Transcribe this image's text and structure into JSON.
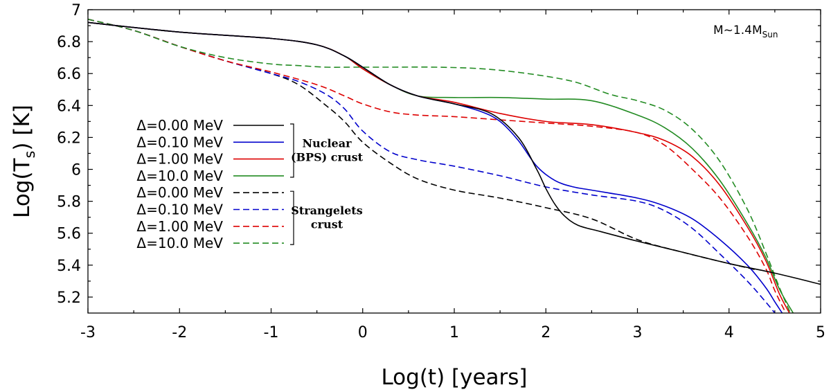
{
  "chart_data": {
    "type": "line",
    "title": "",
    "xlabel": "Log(t) [years]",
    "ylabel": {
      "main": "Log(T",
      "sub": "s",
      "tail": ") [K]"
    },
    "xlim": [
      -3,
      5
    ],
    "ylim": [
      5.1,
      7.0
    ],
    "xticks": [
      -3,
      -2,
      -1,
      0,
      1,
      2,
      3,
      4,
      5
    ],
    "yticks": [
      5.2,
      5.4,
      5.6,
      5.8,
      6,
      6.2,
      6.4,
      6.6,
      6.8,
      7
    ],
    "ytick_labels": [
      "5.2",
      "5.4",
      "5.6",
      "5.8",
      "6",
      "6.2",
      "6.4",
      "6.6",
      "6.8",
      "7"
    ],
    "grid": false,
    "legend_position": "left",
    "annotation": {
      "main": "M~1.4M",
      "sub": "Sun"
    },
    "groups": [
      {
        "label_lines": [
          "Nuclear",
          "(BPS) crust"
        ]
      },
      {
        "label_lines": [
          "Strangelets",
          "crust"
        ]
      }
    ],
    "series": [
      {
        "name": "Δ=0.00 MeV",
        "group": 0,
        "color": "#000000",
        "dash": "solid",
        "x": [
          -3,
          -2,
          -1,
          -0.5,
          -0.2,
          0,
          0.3,
          0.6,
          1,
          1.4,
          1.7,
          1.9,
          2.0,
          2.1,
          2.2,
          2.35,
          2.6,
          3,
          3.5,
          4,
          4.5,
          5
        ],
        "y": [
          6.92,
          6.86,
          6.82,
          6.78,
          6.71,
          6.64,
          6.53,
          6.46,
          6.41,
          6.35,
          6.2,
          6.0,
          5.88,
          5.78,
          5.71,
          5.65,
          5.61,
          5.55,
          5.48,
          5.41,
          5.35,
          5.28
        ]
      },
      {
        "name": "Δ=0.10 MeV",
        "group": 0,
        "color": "#0000cc",
        "dash": "solid",
        "x": [
          -3,
          -2,
          -1,
          -0.5,
          -0.2,
          0,
          0.3,
          0.6,
          1,
          1.3,
          1.5,
          1.7,
          1.9,
          2.1,
          2.3,
          2.5,
          3,
          3.3,
          3.6,
          3.9,
          4.2,
          4.4,
          4.5,
          4.58
        ],
        "y": [
          6.92,
          6.86,
          6.82,
          6.78,
          6.71,
          6.64,
          6.53,
          6.46,
          6.41,
          6.36,
          6.3,
          6.18,
          6.02,
          5.93,
          5.89,
          5.87,
          5.82,
          5.77,
          5.69,
          5.56,
          5.4,
          5.26,
          5.17,
          5.1
        ]
      },
      {
        "name": "Δ=1.00 MeV",
        "group": 0,
        "color": "#dd0000",
        "dash": "solid",
        "x": [
          -3,
          -2,
          -1,
          -0.5,
          -0.2,
          0,
          0.3,
          0.6,
          1,
          1.5,
          2,
          2.5,
          3,
          3.3,
          3.6,
          3.9,
          4.2,
          4.4,
          4.55,
          4.66
        ],
        "y": [
          6.92,
          6.86,
          6.82,
          6.78,
          6.71,
          6.63,
          6.53,
          6.46,
          6.42,
          6.35,
          6.3,
          6.28,
          6.23,
          6.18,
          6.08,
          5.9,
          5.64,
          5.43,
          5.22,
          5.1
        ]
      },
      {
        "name": "Δ=10.0 MeV",
        "group": 0,
        "color": "#228b22",
        "dash": "solid",
        "x": [
          -3,
          -2,
          -1,
          -0.5,
          -0.2,
          0,
          0.3,
          0.6,
          1,
          1.5,
          2,
          2.5,
          3,
          3.3,
          3.6,
          3.9,
          4.2,
          4.4,
          4.55,
          4.7
        ],
        "y": [
          6.92,
          6.86,
          6.82,
          6.78,
          6.71,
          6.63,
          6.53,
          6.46,
          6.45,
          6.45,
          6.44,
          6.43,
          6.34,
          6.26,
          6.13,
          5.93,
          5.66,
          5.45,
          5.25,
          5.1
        ]
      },
      {
        "name": "Δ=0.00 MeV",
        "group": 1,
        "color": "#000000",
        "dash": "dashed",
        "x": [
          -3,
          -2.5,
          -2,
          -1.5,
          -1,
          -0.7,
          -0.4,
          -0.2,
          0,
          0.3,
          0.6,
          1,
          1.5,
          2,
          2.5,
          3,
          3.5,
          4,
          4.3
        ],
        "y": [
          6.94,
          6.87,
          6.77,
          6.68,
          6.6,
          6.53,
          6.4,
          6.3,
          6.17,
          6.04,
          5.94,
          5.87,
          5.82,
          5.76,
          5.69,
          5.56,
          5.48,
          5.41,
          5.37
        ]
      },
      {
        "name": "Δ=0.10 MeV",
        "group": 1,
        "color": "#0000cc",
        "dash": "dashed",
        "x": [
          -3,
          -2.5,
          -2,
          -1.5,
          -1,
          -0.7,
          -0.4,
          -0.2,
          0,
          0.3,
          0.6,
          1,
          1.5,
          2,
          2.5,
          3,
          3.3,
          3.6,
          3.9,
          4.2,
          4.4,
          4.5
        ],
        "y": [
          6.94,
          6.87,
          6.77,
          6.68,
          6.6,
          6.55,
          6.47,
          6.38,
          6.24,
          6.11,
          6.06,
          6.02,
          5.96,
          5.89,
          5.84,
          5.8,
          5.74,
          5.63,
          5.47,
          5.3,
          5.17,
          5.1
        ]
      },
      {
        "name": "Δ=1.00 MeV",
        "group": 1,
        "color": "#dd0000",
        "dash": "dashed",
        "x": [
          -3,
          -2.5,
          -2,
          -1.5,
          -1,
          -0.5,
          -0.2,
          0,
          0.3,
          0.6,
          1,
          1.5,
          2,
          2.5,
          3,
          3.3,
          3.6,
          3.9,
          4.2,
          4.4,
          4.5,
          4.62
        ],
        "y": [
          6.94,
          6.87,
          6.77,
          6.68,
          6.61,
          6.53,
          6.46,
          6.41,
          6.36,
          6.34,
          6.33,
          6.31,
          6.29,
          6.27,
          6.23,
          6.15,
          6.0,
          5.82,
          5.58,
          5.38,
          5.24,
          5.1
        ]
      },
      {
        "name": "Δ=10.0 MeV",
        "group": 1,
        "color": "#228b22",
        "dash": "dashed",
        "x": [
          -3,
          -2.5,
          -2,
          -1.5,
          -1,
          -0.7,
          -0.4,
          -0.1,
          0.3,
          0.8,
          1.3,
          1.8,
          2.3,
          2.7,
          3,
          3.3,
          3.6,
          3.9,
          4.2,
          4.4,
          4.55,
          4.67
        ],
        "y": [
          6.94,
          6.87,
          6.77,
          6.7,
          6.66,
          6.65,
          6.64,
          6.64,
          6.64,
          6.64,
          6.63,
          6.6,
          6.55,
          6.47,
          6.43,
          6.37,
          6.25,
          6.05,
          5.75,
          5.48,
          5.26,
          5.1
        ]
      }
    ]
  }
}
